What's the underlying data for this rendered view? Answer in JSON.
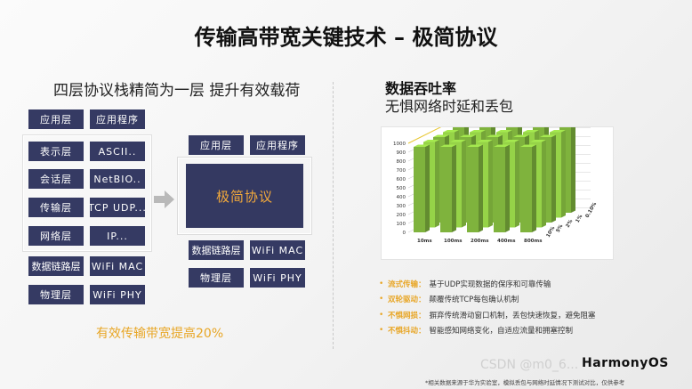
{
  "title": "传输高带宽关键技术 – 极简协议",
  "left": {
    "subtitle": "四层协议栈精简为一层 提升有效载荷",
    "stack": [
      {
        "layer": "应用层",
        "content": "应用程序"
      },
      {
        "layer": "表示层",
        "content": "ASCII.."
      },
      {
        "layer": "会话层",
        "content": "NetBIO.."
      },
      {
        "layer": "传输层",
        "content": "TCP UDP..."
      },
      {
        "layer": "网络层",
        "content": "IP..."
      },
      {
        "layer": "数据链路层",
        "content": "WiFi MAC"
      },
      {
        "layer": "物理层",
        "content": "WiFi PHY"
      }
    ],
    "new_stack": {
      "top_layer": "应用层",
      "top_content": "应用程序",
      "protocol": "极简协议",
      "link_layer": "数据链路层",
      "link_content": "WiFi MAC",
      "phy_layer": "物理层",
      "phy_content": "WiFi PHY"
    },
    "arrow_icon": "arrow-right-icon",
    "bottom_note": "有效传输带宽提高20%"
  },
  "right": {
    "title": "数据吞吐率",
    "subtitle": "无惧网络时延和丢包",
    "bullets": [
      {
        "key": "流式传输：",
        "text": "基于UDP实现数据的保序和可靠传输"
      },
      {
        "key": "双轮驱动：",
        "text": "颠覆传统TCP每包确认机制"
      },
      {
        "key": "不惧网损：",
        "text": "摒弃传统滑动窗口机制，丢包快速恢复，避免阻塞"
      },
      {
        "key": "不惧抖动：",
        "text": "智能感知网络变化，自适应流量和拥塞控制"
      }
    ]
  },
  "chart_data": {
    "type": "bar",
    "subtype": "3d-grouped",
    "title": "",
    "categories": [
      "10ms",
      "100ms",
      "200ms",
      "400ms",
      "800ms"
    ],
    "depth_categories": [
      "10%",
      "5%",
      "2%",
      "1%",
      "0.10%"
    ],
    "ylim": [
      0,
      1000
    ],
    "yticks": [
      0,
      100,
      200,
      300,
      400,
      500,
      600,
      700,
      800,
      900,
      1000
    ],
    "values": [
      [
        960,
        960,
        960,
        960,
        960
      ],
      [
        960,
        960,
        960,
        960,
        960
      ],
      [
        960,
        960,
        960,
        960,
        960
      ],
      [
        960,
        960,
        960,
        960,
        960
      ],
      [
        960,
        960,
        960,
        960,
        960
      ]
    ],
    "colors": {
      "bar": "#7fb33d",
      "grid": "#cfcfcf",
      "highlight": "#e8c832"
    }
  },
  "brand": "HarmonyOS",
  "watermark": "CSDN @m0_6...",
  "footnote": "*相关数据来源于华为实验室，模拟丢包与网络时延情况下测试对比，仅供参考"
}
